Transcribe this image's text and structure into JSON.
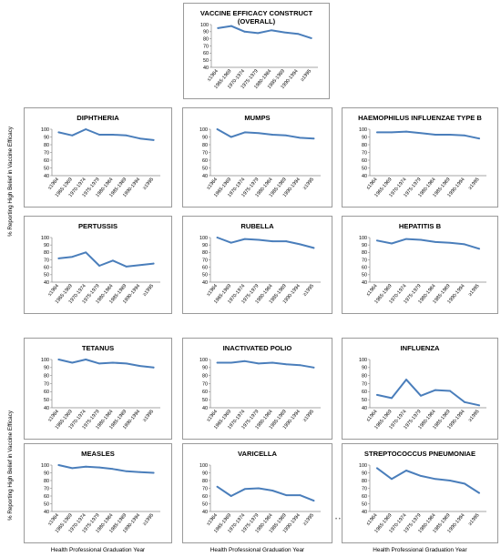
{
  "y_axis_label": "% Reporting High Belief in Vaccine Efficacy",
  "x_axis_label": "Health Professional Graduation Year",
  "stray_marks": "• •",
  "chart_data": [
    {
      "id": "overall",
      "type": "line",
      "title": "VACCINE EFFICACY CONSTRUCT (OVERALL)",
      "categories": [
        "≤1964",
        "1965-1969",
        "1970-1974",
        "1975-1979",
        "1980-1984",
        "1985-1989",
        "1990-1994",
        "≥1995"
      ],
      "values": [
        95,
        98,
        90,
        88,
        92,
        89,
        87,
        81
      ],
      "ylim": [
        40,
        100
      ],
      "yticks": [
        40,
        50,
        60,
        70,
        80,
        90,
        100
      ],
      "color": "#4a7ebb"
    },
    {
      "id": "diphtheria",
      "type": "line",
      "title": "DIPHTHERIA",
      "categories": [
        "≤1964",
        "1965-1969",
        "1970-1974",
        "1975-1979",
        "1980-1984",
        "1985-1989",
        "1990-1994",
        "≥1995"
      ],
      "values": [
        96,
        92,
        100,
        93,
        93,
        92,
        88,
        86
      ],
      "ylim": [
        40,
        100
      ],
      "yticks": [
        40,
        50,
        60,
        70,
        80,
        90,
        100
      ],
      "color": "#4a7ebb"
    },
    {
      "id": "mumps",
      "type": "line",
      "title": "MUMPS",
      "categories": [
        "≤1964",
        "1965-1969",
        "1970-1974",
        "1975-1979",
        "1980-1984",
        "1985-1989",
        "1990-1994",
        "≥1995"
      ],
      "values": [
        100,
        90,
        96,
        95,
        93,
        92,
        89,
        88
      ],
      "ylim": [
        40,
        100
      ],
      "yticks": [
        40,
        50,
        60,
        70,
        80,
        90,
        100
      ],
      "color": "#4a7ebb"
    },
    {
      "id": "hib",
      "type": "line",
      "title": "HAEMOPHILUS INFLUENZAE TYPE B",
      "categories": [
        "≤1964",
        "1965-1969",
        "1970-1974",
        "1975-1979",
        "1980-1984",
        "1985-1989",
        "1990-1994",
        "≥1995"
      ],
      "values": [
        96,
        96,
        97,
        95,
        93,
        93,
        92,
        88
      ],
      "ylim": [
        40,
        100
      ],
      "yticks": [
        40,
        50,
        60,
        70,
        80,
        90,
        100
      ],
      "color": "#4a7ebb"
    },
    {
      "id": "pertussis",
      "type": "line",
      "title": "PERTUSSIS",
      "categories": [
        "≤1964",
        "1965-1969",
        "1970-1974",
        "1975-1979",
        "1980-1984",
        "1985-1989",
        "1990-1994",
        "≥1995"
      ],
      "values": [
        72,
        74,
        80,
        62,
        69,
        61,
        63,
        65
      ],
      "ylim": [
        40,
        100
      ],
      "yticks": [
        40,
        50,
        60,
        70,
        80,
        90,
        100
      ],
      "color": "#4a7ebb"
    },
    {
      "id": "rubella",
      "type": "line",
      "title": "RUBELLA",
      "categories": [
        "≤1964",
        "1965-1969",
        "1970-1974",
        "1975-1979",
        "1980-1984",
        "1985-1989",
        "1990-1994",
        "≥1995"
      ],
      "values": [
        100,
        93,
        98,
        97,
        95,
        95,
        91,
        86
      ],
      "ylim": [
        40,
        100
      ],
      "yticks": [
        40,
        50,
        60,
        70,
        80,
        90,
        100
      ],
      "color": "#4a7ebb"
    },
    {
      "id": "hepb",
      "type": "line",
      "title": "HEPATITIS B",
      "categories": [
        "≤1964",
        "1965-1969",
        "1970-1974",
        "1975-1979",
        "1980-1984",
        "1985-1989",
        "1990-1994",
        "≥1995"
      ],
      "values": [
        96,
        92,
        98,
        97,
        94,
        93,
        91,
        85
      ],
      "ylim": [
        40,
        100
      ],
      "yticks": [
        40,
        50,
        60,
        70,
        80,
        90,
        100
      ],
      "color": "#4a7ebb"
    },
    {
      "id": "tetanus",
      "type": "line",
      "title": "TETANUS",
      "categories": [
        "≤1964",
        "1965-1969",
        "1970-1974",
        "1975-1979",
        "1980-1984",
        "1985-1989",
        "1990-1994",
        "≥1995"
      ],
      "values": [
        100,
        96,
        100,
        95,
        96,
        95,
        92,
        90
      ],
      "ylim": [
        40,
        100
      ],
      "yticks": [
        40,
        50,
        60,
        70,
        80,
        90,
        100
      ],
      "color": "#4a7ebb"
    },
    {
      "id": "polio",
      "type": "line",
      "title": "INACTIVATED POLIO",
      "categories": [
        "≤1964",
        "1965-1969",
        "1970-1974",
        "1975-1979",
        "1980-1984",
        "1985-1989",
        "1990-1994",
        "≥1995"
      ],
      "values": [
        96,
        96,
        98,
        95,
        96,
        94,
        93,
        90
      ],
      "ylim": [
        40,
        100
      ],
      "yticks": [
        40,
        50,
        60,
        70,
        80,
        90,
        100
      ],
      "color": "#4a7ebb"
    },
    {
      "id": "influenza",
      "type": "line",
      "title": "INFLUENZA",
      "categories": [
        "≤1964",
        "1965-1969",
        "1970-1974",
        "1975-1979",
        "1980-1984",
        "1985-1989",
        "1990-1994",
        "≥1995"
      ],
      "values": [
        56,
        52,
        75,
        55,
        62,
        61,
        47,
        43
      ],
      "ylim": [
        40,
        100
      ],
      "yticks": [
        40,
        50,
        60,
        70,
        80,
        90,
        100
      ],
      "color": "#4a7ebb"
    },
    {
      "id": "measles",
      "type": "line",
      "title": "MEASLES",
      "categories": [
        "≤1964",
        "1965-1969",
        "1970-1974",
        "1975-1979",
        "1980-1984",
        "1985-1989",
        "1990-1994",
        "≥1995"
      ],
      "values": [
        100,
        96,
        98,
        97,
        95,
        92,
        91,
        90
      ],
      "ylim": [
        40,
        100
      ],
      "yticks": [
        40,
        50,
        60,
        70,
        80,
        90,
        100
      ],
      "color": "#4a7ebb"
    },
    {
      "id": "varicella",
      "type": "line",
      "title": "VARICELLA",
      "categories": [
        "≤1964",
        "1965-1969",
        "1970-1974",
        "1975-1979",
        "1980-1984",
        "1985-1989",
        "1990-1994",
        "≥1995"
      ],
      "values": [
        72,
        60,
        69,
        70,
        67,
        61,
        61,
        54
      ],
      "ylim": [
        40,
        100
      ],
      "yticks": [
        40,
        50,
        60,
        70,
        80,
        90,
        100
      ],
      "color": "#4a7ebb"
    },
    {
      "id": "pneumo",
      "type": "line",
      "title": "STREPTOCOCCUS PNEUMONIAE",
      "categories": [
        "≤1964",
        "1965-1969",
        "1970-1974",
        "1975-1979",
        "1980-1984",
        "1985-1989",
        "1990-1994",
        "≥1995"
      ],
      "values": [
        96,
        82,
        93,
        86,
        82,
        80,
        76,
        64
      ],
      "ylim": [
        40,
        100
      ],
      "yticks": [
        40,
        50,
        60,
        70,
        80,
        90,
        100
      ],
      "color": "#4a7ebb"
    }
  ]
}
